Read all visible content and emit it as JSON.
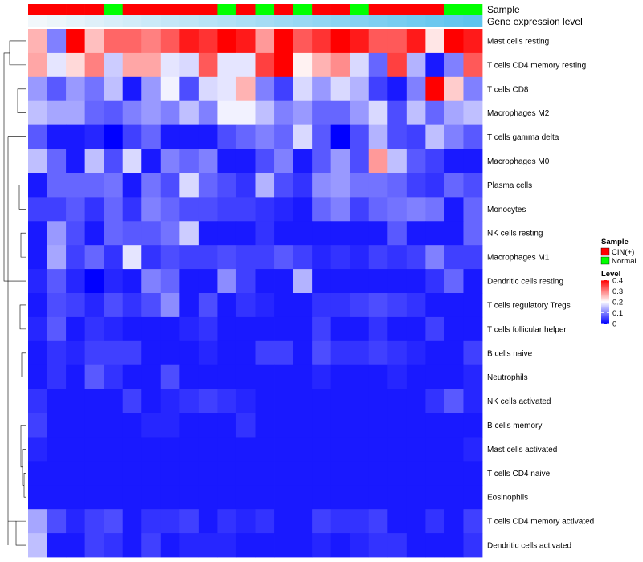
{
  "chart_data": {
    "type": "heatmap",
    "title": "",
    "annotation_tracks": [
      {
        "label": "Sample",
        "legend_title": "Sample",
        "categories": [
          {
            "name": "CIN(+)",
            "color": "#ff0000"
          },
          {
            "name": "Normal",
            "color": "#00ff00"
          }
        ],
        "values": [
          "CIN(+)",
          "CIN(+)",
          "CIN(+)",
          "CIN(+)",
          "Normal",
          "CIN(+)",
          "CIN(+)",
          "CIN(+)",
          "CIN(+)",
          "CIN(+)",
          "Normal",
          "CIN(+)",
          "Normal",
          "CIN(+)",
          "Normal",
          "CIN(+)",
          "CIN(+)",
          "Normal",
          "CIN(+)",
          "CIN(+)",
          "CIN(+)",
          "CIN(+)",
          "Normal",
          "Normal"
        ]
      },
      {
        "label": "Gene expression level",
        "color_low": "#f2f7fb",
        "color_high": "#5ec4ee",
        "values": [
          0.02,
          0.04,
          0.06,
          0.08,
          0.1,
          0.12,
          0.14,
          0.16,
          0.18,
          0.2,
          0.22,
          0.24,
          0.26,
          0.28,
          0.3,
          0.32,
          0.34,
          0.36,
          0.38,
          0.4,
          0.42,
          0.44,
          0.46,
          0.48
        ]
      }
    ],
    "rows": [
      "Mast cells resting",
      "T cells CD4 memory resting",
      "T cells CD8",
      "Macrophages M2",
      "T cells gamma delta",
      "Macrophages M0",
      "Plasma cells",
      "Monocytes",
      "NK cells resting",
      "Macrophages M1",
      "Dendritic cells resting",
      "T cells regulatory  Tregs",
      "T cells follicular helper",
      "B cells naive",
      "Neutrophils",
      "NK cells activated",
      "B cells memory",
      "Mast cells activated",
      "T cells CD4 naive",
      "Eosinophils",
      "T cells CD4 memory activated",
      "Dendritic cells activated"
    ],
    "n_columns": 24,
    "values": [
      [
        0.26,
        0.1,
        0.4,
        0.25,
        0.32,
        0.32,
        0.3,
        0.33,
        0.38,
        0.36,
        0.4,
        0.38,
        0.28,
        0.4,
        0.33,
        0.36,
        0.4,
        0.38,
        0.33,
        0.33,
        0.38,
        0.22,
        0.4,
        0.38
      ],
      [
        0.27,
        0.18,
        0.23,
        0.3,
        0.16,
        0.27,
        0.27,
        0.18,
        0.17,
        0.33,
        0.18,
        0.18,
        0.35,
        0.4,
        0.21,
        0.26,
        0.29,
        0.17,
        0.08,
        0.35,
        0.14,
        0.02,
        0.1,
        0.33
      ],
      [
        0.12,
        0.07,
        0.12,
        0.09,
        0.15,
        0.02,
        0.12,
        0.19,
        0.06,
        0.17,
        0.18,
        0.26,
        0.1,
        0.05,
        0.17,
        0.12,
        0.17,
        0.14,
        0.05,
        0.02,
        0.1,
        0.4,
        0.24,
        0.1
      ],
      [
        0.15,
        0.13,
        0.13,
        0.08,
        0.07,
        0.1,
        0.12,
        0.1,
        0.15,
        0.1,
        0.19,
        0.19,
        0.15,
        0.1,
        0.12,
        0.08,
        0.08,
        0.12,
        0.17,
        0.06,
        0.15,
        0.08,
        0.13,
        0.15
      ],
      [
        0.07,
        0.02,
        0.02,
        0.03,
        0.0,
        0.05,
        0.08,
        0.02,
        0.02,
        0.02,
        0.06,
        0.08,
        0.1,
        0.08,
        0.17,
        0.07,
        0.0,
        0.06,
        0.14,
        0.06,
        0.05,
        0.15,
        0.1,
        0.07
      ],
      [
        0.15,
        0.08,
        0.02,
        0.15,
        0.06,
        0.17,
        0.02,
        0.1,
        0.08,
        0.1,
        0.02,
        0.02,
        0.06,
        0.1,
        0.02,
        0.07,
        0.12,
        0.06,
        0.28,
        0.15,
        0.07,
        0.05,
        0.02,
        0.02
      ],
      [
        0.02,
        0.08,
        0.08,
        0.08,
        0.09,
        0.02,
        0.09,
        0.06,
        0.17,
        0.08,
        0.06,
        0.04,
        0.14,
        0.06,
        0.04,
        0.11,
        0.12,
        0.09,
        0.09,
        0.08,
        0.05,
        0.04,
        0.08,
        0.06
      ],
      [
        0.05,
        0.05,
        0.07,
        0.04,
        0.08,
        0.04,
        0.1,
        0.08,
        0.06,
        0.06,
        0.05,
        0.05,
        0.04,
        0.03,
        0.02,
        0.08,
        0.1,
        0.05,
        0.08,
        0.09,
        0.1,
        0.09,
        0.02,
        0.08
      ],
      [
        0.02,
        0.12,
        0.06,
        0.02,
        0.08,
        0.07,
        0.07,
        0.09,
        0.16,
        0.02,
        0.02,
        0.02,
        0.04,
        0.02,
        0.02,
        0.02,
        0.02,
        0.02,
        0.02,
        0.07,
        0.02,
        0.02,
        0.02,
        0.08
      ],
      [
        0.02,
        0.13,
        0.05,
        0.08,
        0.04,
        0.18,
        0.04,
        0.06,
        0.05,
        0.05,
        0.06,
        0.05,
        0.05,
        0.07,
        0.05,
        0.03,
        0.04,
        0.03,
        0.05,
        0.04,
        0.05,
        0.1,
        0.05,
        0.05
      ],
      [
        0.03,
        0.07,
        0.03,
        0.0,
        0.03,
        0.02,
        0.1,
        0.08,
        0.02,
        0.02,
        0.11,
        0.05,
        0.02,
        0.02,
        0.14,
        0.02,
        0.02,
        0.02,
        0.02,
        0.02,
        0.02,
        0.04,
        0.08,
        0.02
      ],
      [
        0.02,
        0.06,
        0.05,
        0.03,
        0.06,
        0.04,
        0.06,
        0.11,
        0.02,
        0.06,
        0.02,
        0.04,
        0.03,
        0.02,
        0.02,
        0.04,
        0.04,
        0.05,
        0.06,
        0.05,
        0.04,
        0.02,
        0.02,
        0.02
      ],
      [
        0.03,
        0.07,
        0.02,
        0.04,
        0.03,
        0.02,
        0.02,
        0.02,
        0.03,
        0.04,
        0.02,
        0.02,
        0.02,
        0.02,
        0.02,
        0.05,
        0.02,
        0.02,
        0.04,
        0.02,
        0.02,
        0.05,
        0.02,
        0.02
      ],
      [
        0.02,
        0.04,
        0.03,
        0.05,
        0.05,
        0.05,
        0.02,
        0.02,
        0.02,
        0.03,
        0.02,
        0.02,
        0.05,
        0.05,
        0.02,
        0.06,
        0.04,
        0.04,
        0.05,
        0.04,
        0.03,
        0.02,
        0.02,
        0.05
      ],
      [
        0.02,
        0.04,
        0.02,
        0.07,
        0.04,
        0.02,
        0.02,
        0.06,
        0.02,
        0.02,
        0.02,
        0.02,
        0.02,
        0.02,
        0.02,
        0.03,
        0.02,
        0.02,
        0.02,
        0.03,
        0.02,
        0.02,
        0.02,
        0.03
      ],
      [
        0.04,
        0.02,
        0.02,
        0.02,
        0.02,
        0.05,
        0.02,
        0.03,
        0.04,
        0.05,
        0.04,
        0.03,
        0.02,
        0.02,
        0.02,
        0.02,
        0.02,
        0.02,
        0.02,
        0.02,
        0.02,
        0.04,
        0.07,
        0.03
      ],
      [
        0.05,
        0.02,
        0.02,
        0.02,
        0.02,
        0.02,
        0.03,
        0.03,
        0.02,
        0.02,
        0.02,
        0.04,
        0.02,
        0.02,
        0.02,
        0.02,
        0.02,
        0.02,
        0.02,
        0.02,
        0.02,
        0.02,
        0.02,
        0.02
      ],
      [
        0.03,
        0.02,
        0.02,
        0.02,
        0.02,
        0.02,
        0.02,
        0.02,
        0.02,
        0.02,
        0.02,
        0.02,
        0.02,
        0.02,
        0.02,
        0.02,
        0.02,
        0.02,
        0.02,
        0.02,
        0.02,
        0.02,
        0.02,
        0.03
      ],
      [
        0.02,
        0.02,
        0.02,
        0.02,
        0.02,
        0.02,
        0.02,
        0.02,
        0.02,
        0.02,
        0.02,
        0.02,
        0.02,
        0.02,
        0.02,
        0.02,
        0.02,
        0.02,
        0.02,
        0.02,
        0.02,
        0.02,
        0.02,
        0.02
      ],
      [
        0.02,
        0.02,
        0.02,
        0.02,
        0.02,
        0.02,
        0.02,
        0.02,
        0.02,
        0.02,
        0.02,
        0.02,
        0.02,
        0.02,
        0.02,
        0.02,
        0.02,
        0.02,
        0.02,
        0.02,
        0.02,
        0.02,
        0.02,
        0.02
      ],
      [
        0.13,
        0.06,
        0.03,
        0.05,
        0.06,
        0.02,
        0.04,
        0.04,
        0.05,
        0.02,
        0.04,
        0.03,
        0.04,
        0.02,
        0.02,
        0.05,
        0.04,
        0.04,
        0.05,
        0.02,
        0.02,
        0.04,
        0.02,
        0.05
      ],
      [
        0.15,
        0.02,
        0.02,
        0.05,
        0.04,
        0.02,
        0.05,
        0.02,
        0.03,
        0.03,
        0.03,
        0.02,
        0.02,
        0.02,
        0.02,
        0.03,
        0.02,
        0.03,
        0.04,
        0.04,
        0.02,
        0.02,
        0.02,
        0.04
      ]
    ],
    "color_scale": {
      "title": "Level",
      "low": "#0000ff",
      "mid": "#ffffff",
      "high": "#ff0000",
      "mid_value": 0.2,
      "range": [
        0,
        0.4
      ],
      "ticks": [
        0.4,
        0.3,
        0.2,
        0.1,
        0
      ],
      "tick_labels": [
        "0.4",
        "0.3",
        "0.2",
        "0.1",
        "0"
      ]
    },
    "row_dendrogram": true,
    "legend_position": "right"
  }
}
